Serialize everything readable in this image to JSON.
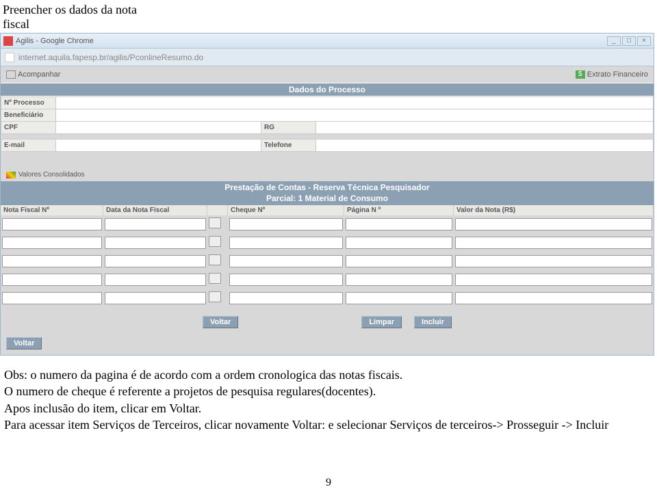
{
  "instruction": {
    "line1": "Preencher os dados da nota",
    "line2": "fiscal"
  },
  "window": {
    "title": "Agilis - Google Chrome",
    "url": "internet.aquila.fapesp.br/agilis/PconlineResumo.do",
    "min": "_",
    "max": "□",
    "close": "×"
  },
  "toolbar": {
    "acompanhar": "Acompanhar",
    "extrato": "Extrato Financeiro",
    "dollar_symbol": "$"
  },
  "dados_header": "Dados do Processo",
  "form_labels": {
    "processo": "Nº Processo",
    "beneficiario": "Beneficiário",
    "cpf": "CPF",
    "rg": "RG",
    "email": "E-mail",
    "telefone": "Telefone"
  },
  "vc_label": "Valores Consolidados",
  "prestacao_header": {
    "line1": "Prestação de Contas - Reserva Técnica Pesquisador",
    "line2": "Parcial: 1    Material de Consumo"
  },
  "columns": {
    "nf": "Nota Fiscal Nº",
    "data": "Data da Nota Fiscal",
    "cheque": "Cheque Nº",
    "pagina": "Página N º",
    "valor": "Valor da Nota (R$)"
  },
  "row_count": 5,
  "buttons": {
    "voltar": "Voltar",
    "limpar": "Limpar",
    "incluir": "Incluir"
  },
  "obs": {
    "l1": "Obs: o numero da pagina é de acordo com a ordem cronologica das notas fiscais.",
    "l2": "O numero de cheque é referente a projetos  de pesquisa regulares(docentes).",
    "l3": "Apos inclusão do item, clicar em Voltar.",
    "l4": "Para acessar item Serviços de Terceiros, clicar novamente Voltar: e selecionar Serviços de terceiros-> Prosseguir -> Incluir"
  },
  "page_number": "9",
  "colors": {
    "header_bg": "#8ca0b4",
    "page_bg": "#d8d8d8",
    "label_bg": "#ecece8"
  }
}
